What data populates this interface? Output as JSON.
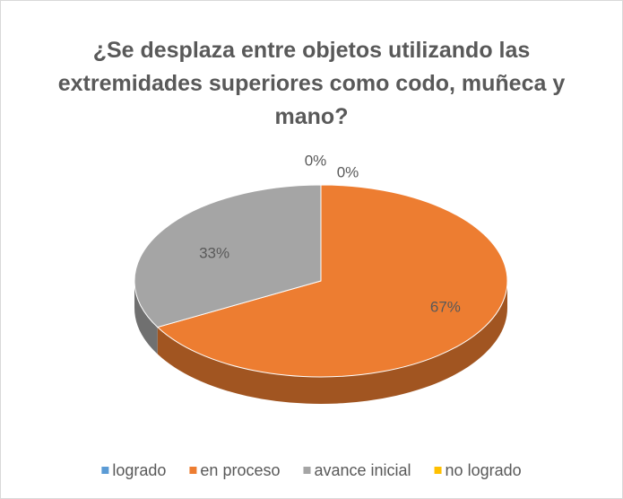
{
  "chart_data": {
    "type": "pie",
    "title": "¿Se desplaza entre objetos utilizando las extremidades superiores como codo, muñeca y mano?",
    "categories": [
      "logrado",
      "en proceso",
      "avance inicial",
      "no logrado"
    ],
    "values": [
      0,
      67,
      33,
      0
    ],
    "value_labels": [
      "0%",
      "67%",
      "33%",
      "0%"
    ],
    "colors": [
      "#5b9bd5",
      "#ed7d31",
      "#a5a5a5",
      "#ffc000"
    ],
    "legend": "bottom"
  }
}
